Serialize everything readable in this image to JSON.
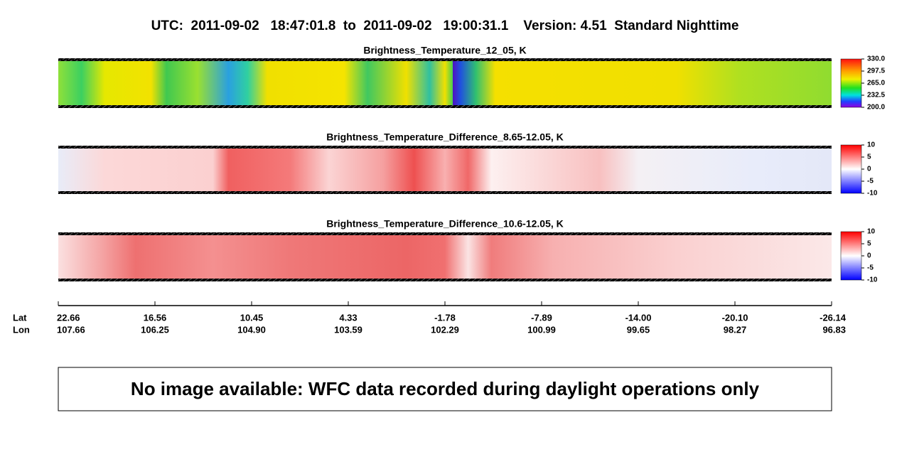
{
  "header": {
    "title": "UTC:  2011-09-02   18:47:01.8  to  2011-09-02   19:00:31.1    Version: 4.51  Standard Nighttime"
  },
  "panels": [
    {
      "title": "Brightness_Temperature_12_05, K",
      "colorbar_ticks": [
        "330.0",
        "297.5",
        "265.0",
        "232.5",
        "200.0"
      ]
    },
    {
      "title": "Brightness_Temperature_Difference_8.65-12.05, K",
      "colorbar_ticks": [
        "10",
        "5",
        "0",
        "-5",
        "-10"
      ]
    },
    {
      "title": "Brightness_Temperature_Difference_10.6-12.05, K",
      "colorbar_ticks": [
        "10",
        "5",
        "0",
        "-5",
        "-10"
      ]
    }
  ],
  "axis": {
    "row_labels": [
      "Lat",
      "Lon"
    ],
    "lat": [
      "22.66",
      "16.56",
      "10.45",
      "4.33",
      "-1.78",
      "-7.89",
      "-14.00",
      "-20.10",
      "-26.14"
    ],
    "lon": [
      "107.66",
      "106.25",
      "104.90",
      "103.59",
      "102.29",
      "100.99",
      "99.65",
      "98.27",
      "96.83"
    ]
  },
  "message": "No image available: WFC data recorded during daylight operations only"
}
